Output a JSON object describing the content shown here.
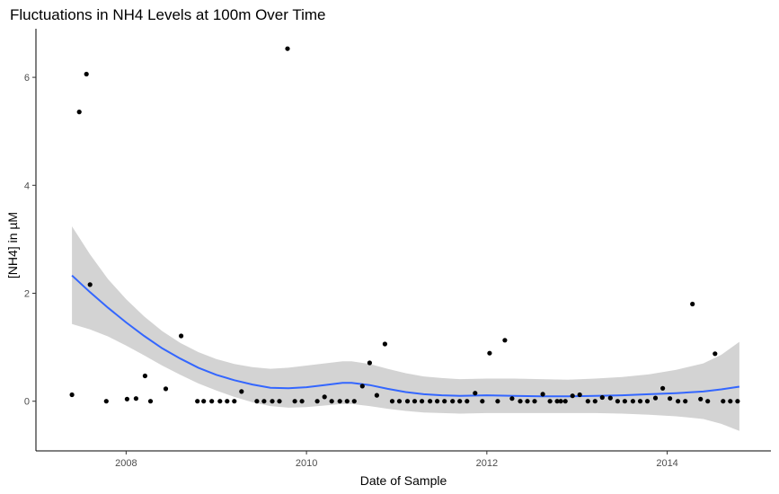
{
  "chart_data": {
    "type": "scatter",
    "title": "Fluctuations in NH4 Levels at 100m Over Time",
    "xlabel": "Date of Sample",
    "ylabel": "[NH4] in µM",
    "xlim": [
      2007.0,
      2015.15
    ],
    "ylim": [
      -0.92,
      6.9
    ],
    "x_ticks": [
      2008,
      2010,
      2012,
      2014
    ],
    "x_tick_labels": [
      "2008",
      "2010",
      "2012",
      "2014"
    ],
    "y_ticks": [
      0,
      2,
      4,
      6
    ],
    "y_tick_labels": [
      "0",
      "2",
      "4",
      "6"
    ],
    "grid": false,
    "colors": {
      "points": "#000000",
      "smooth_line": "#3366ff",
      "confidence_band": "#d3d3d3"
    },
    "series": [
      {
        "values": [
          [
            2007.4,
            0.12
          ],
          [
            2007.48,
            5.36
          ],
          [
            2007.56,
            6.06
          ],
          [
            2007.6,
            2.16
          ],
          [
            2007.78,
            0.0
          ],
          [
            2008.01,
            0.04
          ],
          [
            2008.11,
            0.05
          ],
          [
            2008.21,
            0.47
          ],
          [
            2008.27,
            0.0
          ],
          [
            2008.44,
            0.23
          ],
          [
            2008.61,
            1.21
          ],
          [
            2008.79,
            0.0
          ],
          [
            2008.86,
            0.0
          ],
          [
            2008.95,
            0.0
          ],
          [
            2009.04,
            0.0
          ],
          [
            2009.12,
            0.0
          ],
          [
            2009.2,
            0.0
          ],
          [
            2009.28,
            0.18
          ],
          [
            2009.45,
            0.0
          ],
          [
            2009.53,
            0.0
          ],
          [
            2009.62,
            0.0
          ],
          [
            2009.7,
            0.0
          ],
          [
            2009.79,
            6.53
          ],
          [
            2009.87,
            0.0
          ],
          [
            2009.95,
            0.0
          ],
          [
            2010.12,
            0.0
          ],
          [
            2010.2,
            0.08
          ],
          [
            2010.28,
            0.0
          ],
          [
            2010.37,
            0.0
          ],
          [
            2010.45,
            0.0
          ],
          [
            2010.53,
            0.0
          ],
          [
            2010.62,
            0.28
          ],
          [
            2010.7,
            0.71
          ],
          [
            2010.78,
            0.11
          ],
          [
            2010.87,
            1.06
          ],
          [
            2010.95,
            0.0
          ],
          [
            2011.03,
            0.0
          ],
          [
            2011.12,
            0.0
          ],
          [
            2011.2,
            0.0
          ],
          [
            2011.28,
            0.0
          ],
          [
            2011.37,
            0.0
          ],
          [
            2011.45,
            0.0
          ],
          [
            2011.53,
            0.0
          ],
          [
            2011.62,
            0.0
          ],
          [
            2011.7,
            0.0
          ],
          [
            2011.78,
            0.0
          ],
          [
            2011.87,
            0.15
          ],
          [
            2011.95,
            0.0
          ],
          [
            2012.03,
            0.89
          ],
          [
            2012.12,
            0.0
          ],
          [
            2012.2,
            1.13
          ],
          [
            2012.28,
            0.05
          ],
          [
            2012.37,
            0.0
          ],
          [
            2012.45,
            0.0
          ],
          [
            2012.53,
            0.0
          ],
          [
            2012.62,
            0.13
          ],
          [
            2012.7,
            0.0
          ],
          [
            2012.78,
            0.0
          ],
          [
            2012.82,
            0.0
          ],
          [
            2012.87,
            0.0
          ],
          [
            2012.95,
            0.1
          ],
          [
            2013.03,
            0.12
          ],
          [
            2013.12,
            0.0
          ],
          [
            2013.2,
            0.0
          ],
          [
            2013.28,
            0.07
          ],
          [
            2013.37,
            0.06
          ],
          [
            2013.45,
            0.0
          ],
          [
            2013.53,
            0.0
          ],
          [
            2013.62,
            0.0
          ],
          [
            2013.7,
            0.0
          ],
          [
            2013.78,
            0.0
          ],
          [
            2013.87,
            0.06
          ],
          [
            2013.95,
            0.24
          ],
          [
            2014.03,
            0.05
          ],
          [
            2014.12,
            0.0
          ],
          [
            2014.2,
            0.0
          ],
          [
            2014.28,
            1.8
          ],
          [
            2014.37,
            0.04
          ],
          [
            2014.45,
            0.0
          ],
          [
            2014.53,
            0.88
          ],
          [
            2014.62,
            0.0
          ],
          [
            2014.7,
            0.0
          ],
          [
            2014.78,
            0.0
          ]
        ]
      }
    ],
    "smooth": {
      "x": [
        2007.4,
        2007.6,
        2007.8,
        2008.0,
        2008.2,
        2008.4,
        2008.6,
        2008.8,
        2009.0,
        2009.2,
        2009.4,
        2009.6,
        2009.8,
        2010.0,
        2010.2,
        2010.4,
        2010.5,
        2010.7,
        2010.9,
        2011.1,
        2011.3,
        2011.5,
        2011.7,
        2012.0,
        2012.3,
        2012.6,
        2012.9,
        2013.2,
        2013.5,
        2013.8,
        2014.1,
        2014.4,
        2014.6,
        2014.8
      ],
      "fit": [
        2.33,
        2.02,
        1.73,
        1.46,
        1.21,
        0.98,
        0.79,
        0.62,
        0.49,
        0.39,
        0.31,
        0.25,
        0.24,
        0.26,
        0.3,
        0.34,
        0.34,
        0.3,
        0.23,
        0.17,
        0.13,
        0.11,
        0.1,
        0.11,
        0.1,
        0.09,
        0.09,
        0.1,
        0.11,
        0.13,
        0.15,
        0.18,
        0.22,
        0.27
      ],
      "lower": [
        1.43,
        1.33,
        1.2,
        1.03,
        0.85,
        0.66,
        0.49,
        0.33,
        0.2,
        0.08,
        -0.02,
        -0.09,
        -0.12,
        -0.11,
        -0.08,
        -0.05,
        -0.05,
        -0.09,
        -0.14,
        -0.18,
        -0.21,
        -0.22,
        -0.23,
        -0.22,
        -0.22,
        -0.22,
        -0.22,
        -0.22,
        -0.23,
        -0.25,
        -0.28,
        -0.33,
        -0.42,
        -0.55
      ],
      "upper": [
        3.24,
        2.72,
        2.26,
        1.89,
        1.57,
        1.3,
        1.08,
        0.91,
        0.78,
        0.69,
        0.63,
        0.6,
        0.62,
        0.66,
        0.7,
        0.74,
        0.74,
        0.69,
        0.6,
        0.52,
        0.46,
        0.43,
        0.41,
        0.42,
        0.42,
        0.41,
        0.4,
        0.42,
        0.45,
        0.5,
        0.58,
        0.7,
        0.86,
        1.1
      ]
    }
  }
}
